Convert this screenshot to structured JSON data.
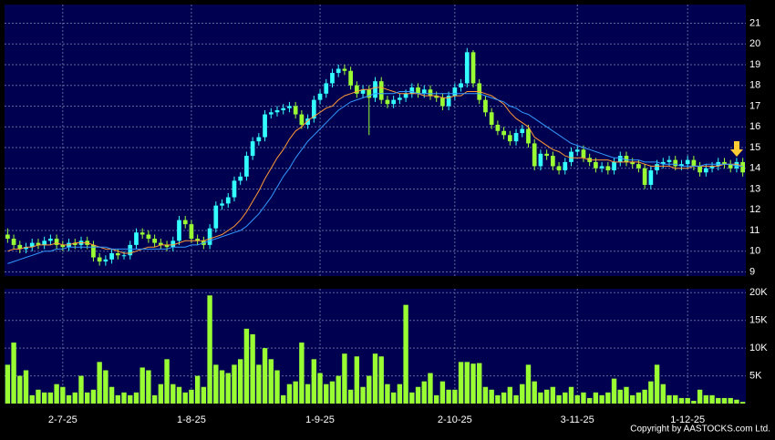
{
  "chart_data": [
    {
      "type": "candlestick",
      "ylim": [
        8.8,
        21.9
      ],
      "yticks": [
        9,
        10,
        11,
        12,
        13,
        14,
        15,
        16,
        17,
        18,
        19,
        20,
        21
      ],
      "xlim": [
        -0.5,
        120.5
      ],
      "grid": true,
      "background": "#000050",
      "up_color": "#33ffff",
      "down_color": "#99ff33",
      "ohlc": [
        [
          10.8,
          11.1,
          10.4,
          10.6
        ],
        [
          10.6,
          10.8,
          10.1,
          10.3
        ],
        [
          10.3,
          10.5,
          9.9,
          10.1
        ],
        [
          10.1,
          10.4,
          9.9,
          10.2
        ],
        [
          10.2,
          10.6,
          10.0,
          10.4
        ],
        [
          10.4,
          10.6,
          10.1,
          10.3
        ],
        [
          10.3,
          10.7,
          10.1,
          10.5
        ],
        [
          10.5,
          10.8,
          10.3,
          10.6
        ],
        [
          10.6,
          10.8,
          10.1,
          10.3
        ],
        [
          10.3,
          10.5,
          10.0,
          10.2
        ],
        [
          10.2,
          10.6,
          10.0,
          10.4
        ],
        [
          10.4,
          10.6,
          10.1,
          10.3
        ],
        [
          10.3,
          10.7,
          10.1,
          10.5
        ],
        [
          10.5,
          10.7,
          10.1,
          10.3
        ],
        [
          10.3,
          10.5,
          9.5,
          9.7
        ],
        [
          9.7,
          9.9,
          9.3,
          9.5
        ],
        [
          9.5,
          9.8,
          9.3,
          9.6
        ],
        [
          9.6,
          10.1,
          9.4,
          9.9
        ],
        [
          9.9,
          10.1,
          9.6,
          9.8
        ],
        [
          9.8,
          10.0,
          9.6,
          9.8
        ],
        [
          9.8,
          10.5,
          9.6,
          10.3
        ],
        [
          10.3,
          11.1,
          10.1,
          10.9
        ],
        [
          10.9,
          11.1,
          10.6,
          10.8
        ],
        [
          10.8,
          11.0,
          10.4,
          10.6
        ],
        [
          10.6,
          10.8,
          10.2,
          10.4
        ],
        [
          10.4,
          10.6,
          10.1,
          10.3
        ],
        [
          10.3,
          10.5,
          10.0,
          10.2
        ],
        [
          10.2,
          10.7,
          10.0,
          10.5
        ],
        [
          10.5,
          11.7,
          10.3,
          11.5
        ],
        [
          11.5,
          11.7,
          11.1,
          11.3
        ],
        [
          11.3,
          11.5,
          10.4,
          10.6
        ],
        [
          10.6,
          10.8,
          10.3,
          10.5
        ],
        [
          10.5,
          10.7,
          10.1,
          10.3
        ],
        [
          10.3,
          11.3,
          10.1,
          11.1
        ],
        [
          11.1,
          12.4,
          10.9,
          12.2
        ],
        [
          12.2,
          12.5,
          12.0,
          12.3
        ],
        [
          12.3,
          12.8,
          12.1,
          12.6
        ],
        [
          12.6,
          13.6,
          12.4,
          13.4
        ],
        [
          13.4,
          13.8,
          13.2,
          13.6
        ],
        [
          13.6,
          14.8,
          13.4,
          14.6
        ],
        [
          14.6,
          15.5,
          14.4,
          15.3
        ],
        [
          15.3,
          15.7,
          15.1,
          15.5
        ],
        [
          15.5,
          16.8,
          15.3,
          16.6
        ],
        [
          16.6,
          16.9,
          16.4,
          16.7
        ],
        [
          16.7,
          17.0,
          16.5,
          16.8
        ],
        [
          16.8,
          17.1,
          16.6,
          16.9
        ],
        [
          16.9,
          17.2,
          16.7,
          17.0
        ],
        [
          17.0,
          17.2,
          16.4,
          16.6
        ],
        [
          16.6,
          16.8,
          15.9,
          16.1
        ],
        [
          16.1,
          16.6,
          15.9,
          16.4
        ],
        [
          16.4,
          17.5,
          16.2,
          17.3
        ],
        [
          17.3,
          17.8,
          17.1,
          17.6
        ],
        [
          17.6,
          18.3,
          17.4,
          18.1
        ],
        [
          18.1,
          18.8,
          17.9,
          18.6
        ],
        [
          18.6,
          19.0,
          18.4,
          18.8
        ],
        [
          18.8,
          19.0,
          18.5,
          18.7
        ],
        [
          18.7,
          18.9,
          17.8,
          18.0
        ],
        [
          18.0,
          18.2,
          17.4,
          17.6
        ],
        [
          17.6,
          18.0,
          17.4,
          17.8
        ],
        [
          17.8,
          18.0,
          15.6,
          17.4
        ],
        [
          17.4,
          18.4,
          17.2,
          18.2
        ],
        [
          18.2,
          18.4,
          17.1,
          17.3
        ],
        [
          17.3,
          17.5,
          16.9,
          17.1
        ],
        [
          17.1,
          17.5,
          16.9,
          17.3
        ],
        [
          17.3,
          17.6,
          17.1,
          17.4
        ],
        [
          17.4,
          17.8,
          17.2,
          17.6
        ],
        [
          17.6,
          18.1,
          17.4,
          17.9
        ],
        [
          17.9,
          18.1,
          17.4,
          17.6
        ],
        [
          17.6,
          18.0,
          17.4,
          17.8
        ],
        [
          17.8,
          18.0,
          17.3,
          17.5
        ],
        [
          17.5,
          17.7,
          17.2,
          17.4
        ],
        [
          17.4,
          17.6,
          16.8,
          17.0
        ],
        [
          17.0,
          17.7,
          16.8,
          17.5
        ],
        [
          17.5,
          18.1,
          17.3,
          17.9
        ],
        [
          17.9,
          18.3,
          17.7,
          18.1
        ],
        [
          18.1,
          19.8,
          17.9,
          19.6
        ],
        [
          19.6,
          19.7,
          17.9,
          18.1
        ],
        [
          18.1,
          18.3,
          17.1,
          17.3
        ],
        [
          17.3,
          17.5,
          16.5,
          16.7
        ],
        [
          16.7,
          16.9,
          15.9,
          16.1
        ],
        [
          16.1,
          16.3,
          15.6,
          15.8
        ],
        [
          15.8,
          16.0,
          15.4,
          15.6
        ],
        [
          15.6,
          15.8,
          15.1,
          15.3
        ],
        [
          15.3,
          15.9,
          15.1,
          15.7
        ],
        [
          15.7,
          16.1,
          15.5,
          15.9
        ],
        [
          15.9,
          16.1,
          15.0,
          15.2
        ],
        [
          15.2,
          15.4,
          13.9,
          14.1
        ],
        [
          14.1,
          14.9,
          13.9,
          14.7
        ],
        [
          14.7,
          14.9,
          14.4,
          14.6
        ],
        [
          14.6,
          14.8,
          13.9,
          14.1
        ],
        [
          14.1,
          14.3,
          13.7,
          13.9
        ],
        [
          13.9,
          14.5,
          13.7,
          14.3
        ],
        [
          14.3,
          15.0,
          14.1,
          14.8
        ],
        [
          14.8,
          15.1,
          14.6,
          14.9
        ],
        [
          14.9,
          15.1,
          14.3,
          14.5
        ],
        [
          14.5,
          14.7,
          14.1,
          14.3
        ],
        [
          14.3,
          14.5,
          13.8,
          14.0
        ],
        [
          14.0,
          14.3,
          13.8,
          14.1
        ],
        [
          14.1,
          14.3,
          13.7,
          13.9
        ],
        [
          13.9,
          14.5,
          13.7,
          14.3
        ],
        [
          14.3,
          14.8,
          14.1,
          14.6
        ],
        [
          14.6,
          14.8,
          14.1,
          14.3
        ],
        [
          14.3,
          14.5,
          14.0,
          14.2
        ],
        [
          14.2,
          14.4,
          13.8,
          14.0
        ],
        [
          14.0,
          14.2,
          13.0,
          13.2
        ],
        [
          13.2,
          14.1,
          13.0,
          13.9
        ],
        [
          13.9,
          14.4,
          13.7,
          14.2
        ],
        [
          14.2,
          14.5,
          14.0,
          14.3
        ],
        [
          14.3,
          14.6,
          14.1,
          14.4
        ],
        [
          14.4,
          14.6,
          13.9,
          14.1
        ],
        [
          14.1,
          14.4,
          13.9,
          14.2
        ],
        [
          14.2,
          14.6,
          14.0,
          14.4
        ],
        [
          14.4,
          14.6,
          13.9,
          14.1
        ],
        [
          14.1,
          14.3,
          13.6,
          13.8
        ],
        [
          13.8,
          14.2,
          13.6,
          14.0
        ],
        [
          14.0,
          14.3,
          13.8,
          14.1
        ],
        [
          14.1,
          14.5,
          13.9,
          14.3
        ],
        [
          14.3,
          14.5,
          14.0,
          14.2
        ],
        [
          14.2,
          14.4,
          13.8,
          14.0
        ],
        [
          14.0,
          14.5,
          13.8,
          14.3
        ],
        [
          14.3,
          14.5,
          13.6,
          13.8
        ]
      ],
      "lines": [
        {
          "color": "#ff9933",
          "values": [
            10.0,
            10.1,
            10.1,
            10.2,
            10.2,
            10.3,
            10.3,
            10.3,
            10.4,
            10.3,
            10.3,
            10.4,
            10.4,
            10.4,
            10.3,
            10.2,
            10.1,
            10.1,
            10.0,
            9.9,
            9.9,
            10.0,
            10.1,
            10.2,
            10.2,
            10.3,
            10.3,
            10.3,
            10.4,
            10.5,
            10.5,
            10.5,
            10.5,
            10.6,
            10.7,
            10.8,
            11.0,
            11.2,
            11.5,
            11.9,
            12.4,
            12.9,
            13.5,
            14.0,
            14.5,
            14.9,
            15.4,
            15.8,
            16.0,
            16.3,
            16.5,
            16.7,
            16.9,
            17.0,
            17.3,
            17.5,
            17.6,
            17.7,
            17.8,
            17.8,
            17.9,
            17.9,
            17.8,
            17.7,
            17.6,
            17.6,
            17.6,
            17.6,
            17.5,
            17.5,
            17.5,
            17.4,
            17.4,
            17.5,
            17.5,
            17.7,
            17.7,
            17.7,
            17.6,
            17.5,
            17.3,
            17.1,
            16.7,
            16.4,
            16.2,
            16.0,
            15.5,
            15.3,
            15.1,
            14.9,
            14.8,
            14.6,
            14.5,
            14.5,
            14.5,
            14.4,
            14.4,
            14.4,
            14.4,
            14.3,
            14.3,
            14.3,
            14.3,
            14.3,
            14.2,
            14.1,
            14.1,
            14.1,
            14.1,
            14.0,
            14.0,
            14.0,
            14.1,
            14.1,
            14.1,
            14.1,
            14.1,
            14.2,
            14.2,
            14.2,
            14.1
          ]
        },
        {
          "color": "#3399ff",
          "values": [
            9.4,
            9.5,
            9.6,
            9.7,
            9.8,
            9.9,
            10.0,
            10.0,
            10.1,
            10.1,
            10.2,
            10.2,
            10.2,
            10.2,
            10.2,
            10.2,
            10.2,
            10.1,
            10.1,
            10.1,
            10.1,
            10.1,
            10.1,
            10.1,
            10.1,
            10.1,
            10.1,
            10.2,
            10.2,
            10.2,
            10.3,
            10.3,
            10.4,
            10.5,
            10.6,
            10.7,
            10.8,
            10.9,
            11.0,
            11.2,
            11.5,
            11.8,
            12.2,
            12.6,
            13.1,
            13.6,
            14.0,
            14.5,
            14.9,
            15.3,
            15.6,
            15.9,
            16.2,
            16.5,
            16.8,
            17.0,
            17.2,
            17.3,
            17.4,
            17.5,
            17.6,
            17.6,
            17.6,
            17.6,
            17.7,
            17.7,
            17.7,
            17.6,
            17.6,
            17.6,
            17.6,
            17.6,
            17.6,
            17.6,
            17.6,
            17.6,
            17.6,
            17.6,
            17.5,
            17.4,
            17.3,
            17.2,
            17.0,
            16.9,
            16.7,
            16.6,
            16.4,
            16.2,
            16.0,
            15.8,
            15.6,
            15.4,
            15.2,
            15.1,
            15.0,
            14.9,
            14.8,
            14.7,
            14.6,
            14.5,
            14.5,
            14.4,
            14.4,
            14.4,
            14.3,
            14.3,
            14.3,
            14.2,
            14.2,
            14.2,
            14.1,
            14.1,
            14.1,
            14.1,
            14.2,
            14.2,
            14.2,
            14.2,
            14.2,
            14.1,
            14.1
          ]
        }
      ]
    },
    {
      "type": "bar",
      "color": "#99ff33",
      "background": "#000050",
      "grid": true,
      "ylim": [
        0,
        20700
      ],
      "yticks": [
        {
          "value": 5000,
          "label": "5K"
        },
        {
          "value": 10000,
          "label": "10K"
        },
        {
          "value": 15000,
          "label": "15K"
        },
        {
          "value": 20000,
          "label": "20K"
        }
      ],
      "xlim": [
        -0.5,
        120.5
      ],
      "xticks": [
        {
          "value": 9,
          "label": "2-7-25"
        },
        {
          "value": 30,
          "label": "1-8-25"
        },
        {
          "value": 51,
          "label": "1-9-25"
        },
        {
          "value": 73,
          "label": "2-10-25"
        },
        {
          "value": 93,
          "label": "3-11-25"
        },
        {
          "value": 111,
          "label": "1-12-25"
        }
      ],
      "values": [
        7000,
        11000,
        5000,
        6000,
        1500,
        2500,
        2000,
        2000,
        3500,
        3000,
        1500,
        2000,
        5000,
        2000,
        2500,
        7500,
        6000,
        3000,
        1500,
        2000,
        1500,
        2000,
        6500,
        6000,
        1500,
        3500,
        8000,
        3500,
        3000,
        2000,
        2500,
        5000,
        3000,
        19500,
        7000,
        6000,
        5500,
        7000,
        8000,
        13500,
        12500,
        7000,
        10000,
        8000,
        6000,
        1500,
        3500,
        4000,
        11000,
        3500,
        8000,
        5500,
        3500,
        4000,
        5000,
        9000,
        2500,
        8500,
        3000,
        5000,
        9000,
        8500,
        3500,
        2000,
        3500,
        17800,
        2000,
        3000,
        4000,
        5500,
        1500,
        4000,
        2500,
        2500,
        7500,
        7500,
        7200,
        7300,
        3000,
        2500,
        1500,
        2000,
        3000,
        1500,
        3500,
        7000,
        4000,
        2000,
        2500,
        3000,
        1500,
        2000,
        3000,
        1500,
        2000,
        1000,
        2000,
        1500,
        2000,
        4500,
        2500,
        3000,
        1500,
        2000,
        2500,
        4000,
        7000,
        3500,
        1500,
        1500,
        1000,
        1000,
        500,
        2500,
        1500,
        1500,
        1000,
        1000,
        1000,
        700,
        300
      ]
    }
  ],
  "copyright": "Copyright by AASTOCKS.com Ltd."
}
